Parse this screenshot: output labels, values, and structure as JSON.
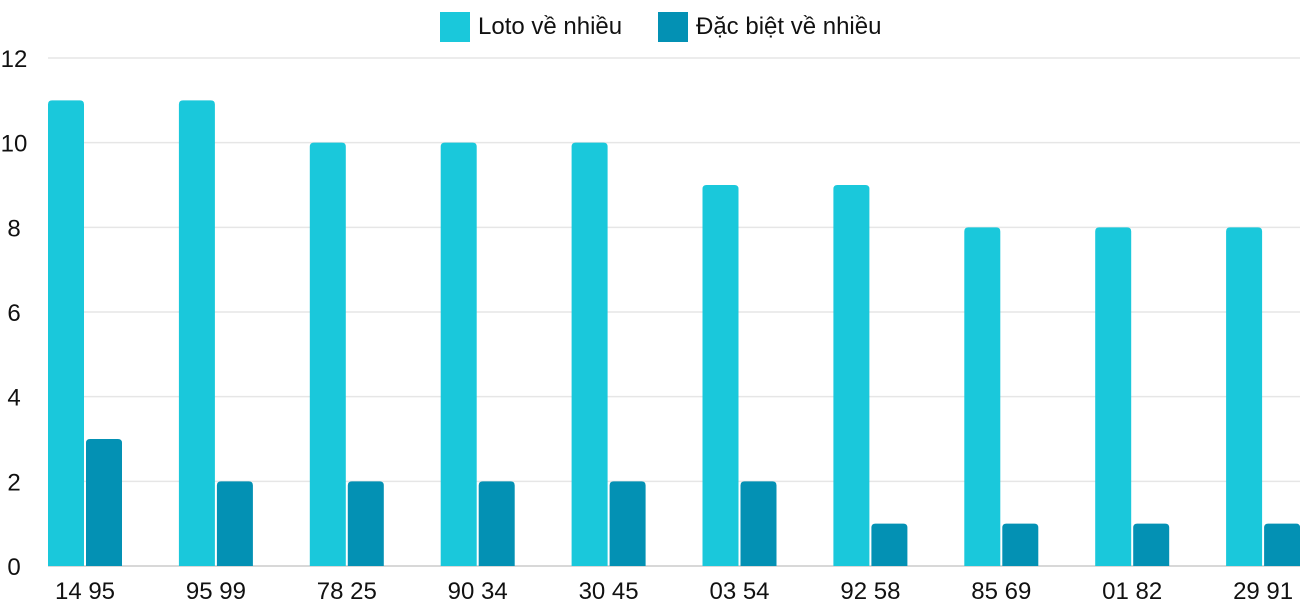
{
  "chart_data": {
    "type": "bar",
    "categories": [
      "14 95",
      "95 99",
      "78 25",
      "90 34",
      "30 45",
      "03 54",
      "92 58",
      "85 69",
      "01 82",
      "29 91"
    ],
    "series": [
      {
        "name": "Loto về nhiều",
        "color": "#1AC8DB",
        "values": [
          11,
          11,
          10,
          10,
          10,
          9,
          9,
          8,
          8,
          8
        ]
      },
      {
        "name": "Đặc biệt về nhiều",
        "color": "#0391B4",
        "values": [
          3,
          2,
          2,
          2,
          2,
          2,
          1,
          1,
          1,
          1
        ]
      }
    ],
    "ylim": [
      0,
      12
    ],
    "yticks": [
      0,
      2,
      4,
      6,
      8,
      10,
      12
    ],
    "grid": true,
    "legend": "top-center"
  }
}
